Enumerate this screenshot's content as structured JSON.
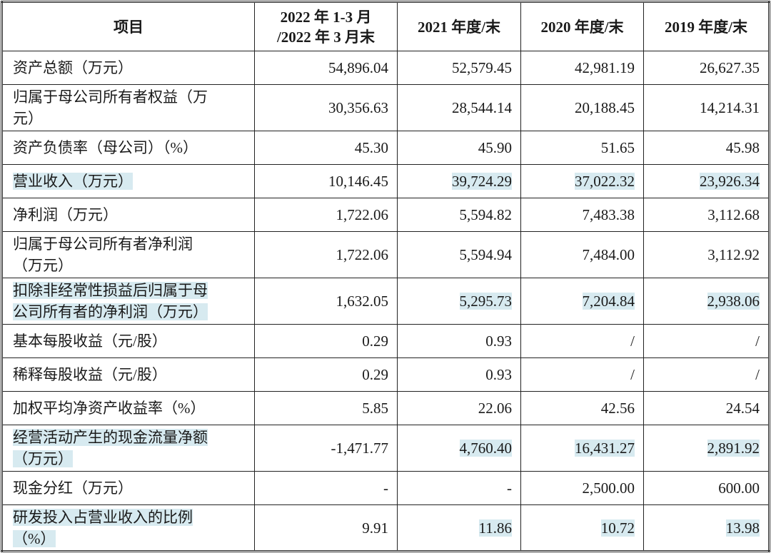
{
  "table": {
    "headers": [
      "项目",
      "2022 年 1-3 月\n/2022 年 3 月末",
      "2021 年度/末",
      "2020 年度/末",
      "2019 年度/末"
    ],
    "highlight_color": "#d7eaf0",
    "rows": [
      {
        "label": "资产总额（万元）",
        "label_hl": false,
        "values": [
          "54,896.04",
          "52,579.45",
          "42,981.19",
          "26,627.35"
        ],
        "hl": [
          false,
          false,
          false,
          false
        ],
        "tall": false
      },
      {
        "label": "归属于母公司所有者权益（万\n元）",
        "label_hl": false,
        "values": [
          "30,356.63",
          "28,544.14",
          "20,188.45",
          "14,214.31"
        ],
        "hl": [
          false,
          false,
          false,
          false
        ],
        "tall": true
      },
      {
        "label": "资产负债率（母公司）（%）",
        "label_hl": false,
        "values": [
          "45.30",
          "45.90",
          "51.65",
          "45.98"
        ],
        "hl": [
          false,
          false,
          false,
          false
        ],
        "tall": false
      },
      {
        "label": "营业收入（万元）",
        "label_hl": true,
        "values": [
          "10,146.45",
          "39,724.29",
          "37,022.32",
          "23,926.34"
        ],
        "hl": [
          false,
          true,
          true,
          true
        ],
        "tall": false
      },
      {
        "label": "净利润（万元）",
        "label_hl": false,
        "values": [
          "1,722.06",
          "5,594.82",
          "7,483.38",
          "3,112.68"
        ],
        "hl": [
          false,
          false,
          false,
          false
        ],
        "tall": false
      },
      {
        "label": "归属于母公司所有者净利润\n（万元）",
        "label_hl": false,
        "values": [
          "1,722.06",
          "5,594.94",
          "7,484.00",
          "3,112.92"
        ],
        "hl": [
          false,
          false,
          false,
          false
        ],
        "tall": true
      },
      {
        "label": "扣除非经常性损益后归属于母\n公司所有者的净利润（万元）",
        "label_hl": true,
        "values": [
          "1,632.05",
          "5,295.73",
          "7,204.84",
          "2,938.06"
        ],
        "hl": [
          false,
          true,
          true,
          true
        ],
        "tall": true
      },
      {
        "label": "基本每股收益（元/股）",
        "label_hl": false,
        "values": [
          "0.29",
          "0.93",
          "/",
          "/"
        ],
        "hl": [
          false,
          false,
          false,
          false
        ],
        "tall": false
      },
      {
        "label": "稀释每股收益（元/股）",
        "label_hl": false,
        "values": [
          "0.29",
          "0.93",
          "/",
          "/"
        ],
        "hl": [
          false,
          false,
          false,
          false
        ],
        "tall": false
      },
      {
        "label": "加权平均净资产收益率（%）",
        "label_hl": false,
        "values": [
          "5.85",
          "22.06",
          "42.56",
          "24.54"
        ],
        "hl": [
          false,
          false,
          false,
          false
        ],
        "tall": false
      },
      {
        "label": "经营活动产生的现金流量净额\n（万元）",
        "label_hl": true,
        "values": [
          "-1,471.77",
          "4,760.40",
          "16,431.27",
          "2,891.92"
        ],
        "hl": [
          false,
          true,
          true,
          true
        ],
        "tall": true
      },
      {
        "label": "现金分红（万元）",
        "label_hl": false,
        "values": [
          "-",
          "-",
          "2,500.00",
          "600.00"
        ],
        "hl": [
          false,
          false,
          false,
          false
        ],
        "tall": false
      },
      {
        "label": "研发投入占营业收入的比例\n（%）",
        "label_hl": true,
        "values": [
          "9.91",
          "11.86",
          "10.72",
          "13.98"
        ],
        "hl": [
          false,
          true,
          true,
          true
        ],
        "tall": true
      }
    ]
  }
}
